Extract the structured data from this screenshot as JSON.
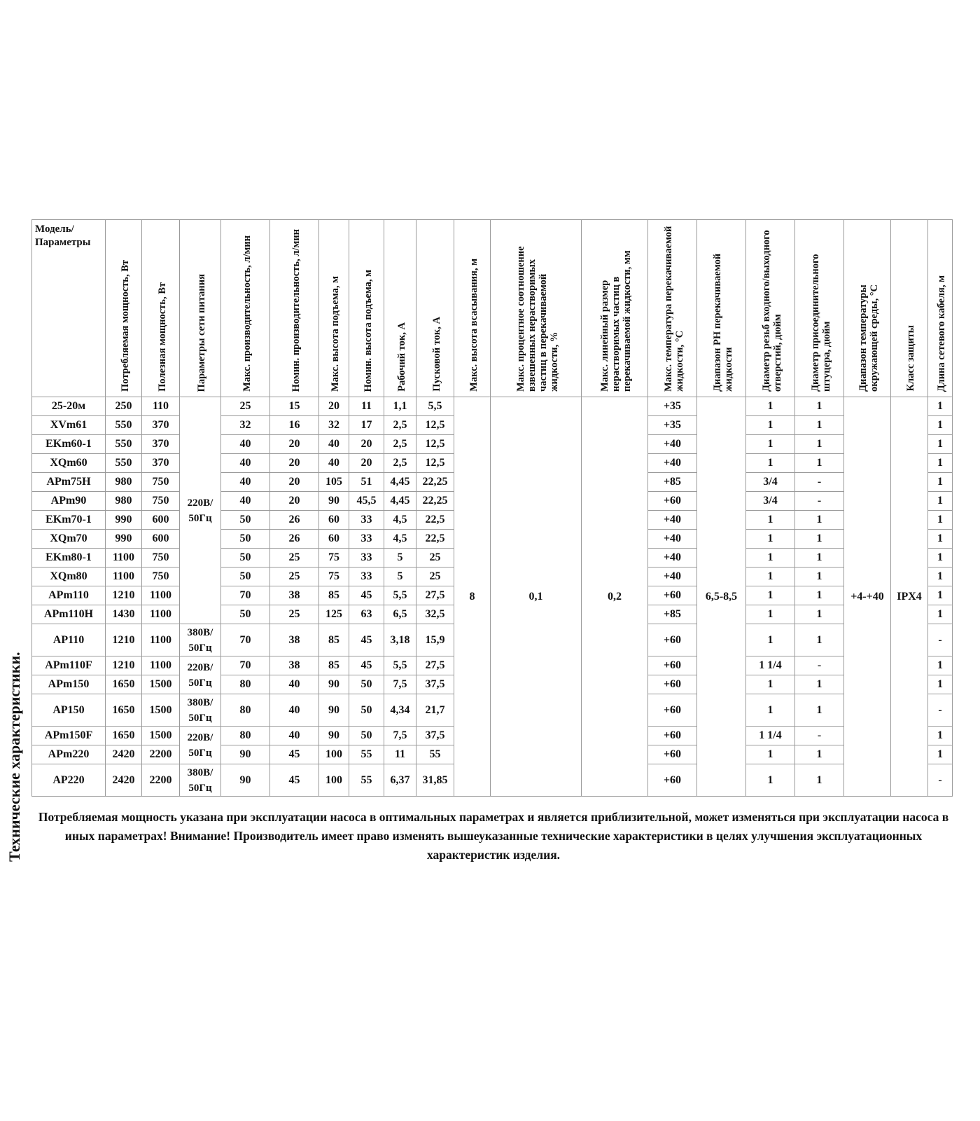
{
  "side_title": "Технические характеристики.",
  "table": {
    "headers": [
      "Модель/ Параметры",
      "Потребляемая мощность, Вт",
      "Полезная мощность, Вт",
      "Параметры сети питания",
      "Макс. производительность, л/мин",
      "Номин. производительность, л/мин",
      "Макс. высота подъема, м",
      "Номин. высота подъема, м",
      "Рабочий ток, А",
      "Пусковой ток, А",
      "Макс. высота всасывания, м",
      "Макс. процентное соотношение взвешенных нерастворимых частиц в перекачиваемой жидкости, %",
      "Макс. линейный размер нерастворимых частиц в перекачиваемой жидкости, мм",
      "Макс. температура перекачиваемой жидкости, °С",
      "Диапазон PH перекачиваемой жидкости",
      "Диаметр резьб входного/выходного отверстий, дюйм",
      "Диаметр присоединительного штуцера, дюйм",
      "Диапазон температуры окружающей среды, °С",
      "Класс защиты",
      "Длина сетевого кабеля, м"
    ],
    "shared": {
      "suction": "8",
      "solids_percent": "0,1",
      "particle_size": "0,2",
      "ph": "6,5-8,5",
      "ambient": "+4-+40",
      "protection": "IPX4"
    },
    "groups": [
      {
        "network": "220В/ 50Гц",
        "rows": [
          [
            "25-20м",
            "250",
            "110",
            "25",
            "15",
            "20",
            "11",
            "1,1",
            "5,5",
            "+35",
            "1",
            "1",
            "1"
          ],
          [
            "XVm61",
            "550",
            "370",
            "32",
            "16",
            "32",
            "17",
            "2,5",
            "12,5",
            "+35",
            "1",
            "1",
            "1"
          ],
          [
            "EKm60-1",
            "550",
            "370",
            "40",
            "20",
            "40",
            "20",
            "2,5",
            "12,5",
            "+40",
            "1",
            "1",
            "1"
          ],
          [
            "XQm60",
            "550",
            "370",
            "40",
            "20",
            "40",
            "20",
            "2,5",
            "12,5",
            "+40",
            "1",
            "1",
            "1"
          ],
          [
            "APm75H",
            "980",
            "750",
            "40",
            "20",
            "105",
            "51",
            "4,45",
            "22,25",
            "+85",
            "3/4",
            "-",
            "1"
          ],
          [
            "APm90",
            "980",
            "750",
            "40",
            "20",
            "90",
            "45,5",
            "4,45",
            "22,25",
            "+60",
            "3/4",
            "-",
            "1"
          ],
          [
            "EKm70-1",
            "990",
            "600",
            "50",
            "26",
            "60",
            "33",
            "4,5",
            "22,5",
            "+40",
            "1",
            "1",
            "1"
          ],
          [
            "XQm70",
            "990",
            "600",
            "50",
            "26",
            "60",
            "33",
            "4,5",
            "22,5",
            "+40",
            "1",
            "1",
            "1"
          ],
          [
            "EKm80-1",
            "1100",
            "750",
            "50",
            "25",
            "75",
            "33",
            "5",
            "25",
            "+40",
            "1",
            "1",
            "1"
          ],
          [
            "XQm80",
            "1100",
            "750",
            "50",
            "25",
            "75",
            "33",
            "5",
            "25",
            "+40",
            "1",
            "1",
            "1"
          ],
          [
            "APm110",
            "1210",
            "1100",
            "70",
            "38",
            "85",
            "45",
            "5,5",
            "27,5",
            "+60",
            "1",
            "1",
            "1"
          ],
          [
            "APm110H",
            "1430",
            "1100",
            "50",
            "25",
            "125",
            "63",
            "6,5",
            "32,5",
            "+85",
            "1",
            "1",
            "1"
          ]
        ]
      },
      {
        "network": "380В/ 50Гц",
        "rows": [
          [
            "AP110",
            "1210",
            "1100",
            "70",
            "38",
            "85",
            "45",
            "3,18",
            "15,9",
            "+60",
            "1",
            "1",
            "-"
          ]
        ]
      },
      {
        "network": "220В/ 50Гц",
        "rows": [
          [
            "APm110F",
            "1210",
            "1100",
            "70",
            "38",
            "85",
            "45",
            "5,5",
            "27,5",
            "+60",
            "1 1/4",
            "-",
            "1"
          ],
          [
            "APm150",
            "1650",
            "1500",
            "80",
            "40",
            "90",
            "50",
            "7,5",
            "37,5",
            "+60",
            "1",
            "1",
            "1"
          ]
        ]
      },
      {
        "network": "380В/ 50Гц",
        "rows": [
          [
            "AP150",
            "1650",
            "1500",
            "80",
            "40",
            "90",
            "50",
            "4,34",
            "21,7",
            "+60",
            "1",
            "1",
            "-"
          ]
        ]
      },
      {
        "network": "220В/ 50Гц",
        "rows": [
          [
            "APm150F",
            "1650",
            "1500",
            "80",
            "40",
            "90",
            "50",
            "7,5",
            "37,5",
            "+60",
            "1 1/4",
            "-",
            "1"
          ],
          [
            "APm220",
            "2420",
            "2200",
            "90",
            "45",
            "100",
            "55",
            "11",
            "55",
            "+60",
            "1",
            "1",
            "1"
          ]
        ]
      },
      {
        "network": "380В/ 50Гц",
        "rows": [
          [
            "AP220",
            "2420",
            "2200",
            "90",
            "45",
            "100",
            "55",
            "6,37",
            "31,85",
            "+60",
            "1",
            "1",
            "-"
          ]
        ]
      }
    ]
  },
  "note": "Потребляемая мощность указана при эксплуатации насоса в оптимальных параметрах и является приблизительной, может изменяться при эксплуатации насоса в иных параметрах! Внимание! Производитель имеет право изменять вышеуказанные технические характеристики в целях улучшения эксплуатационных характеристик изделия."
}
